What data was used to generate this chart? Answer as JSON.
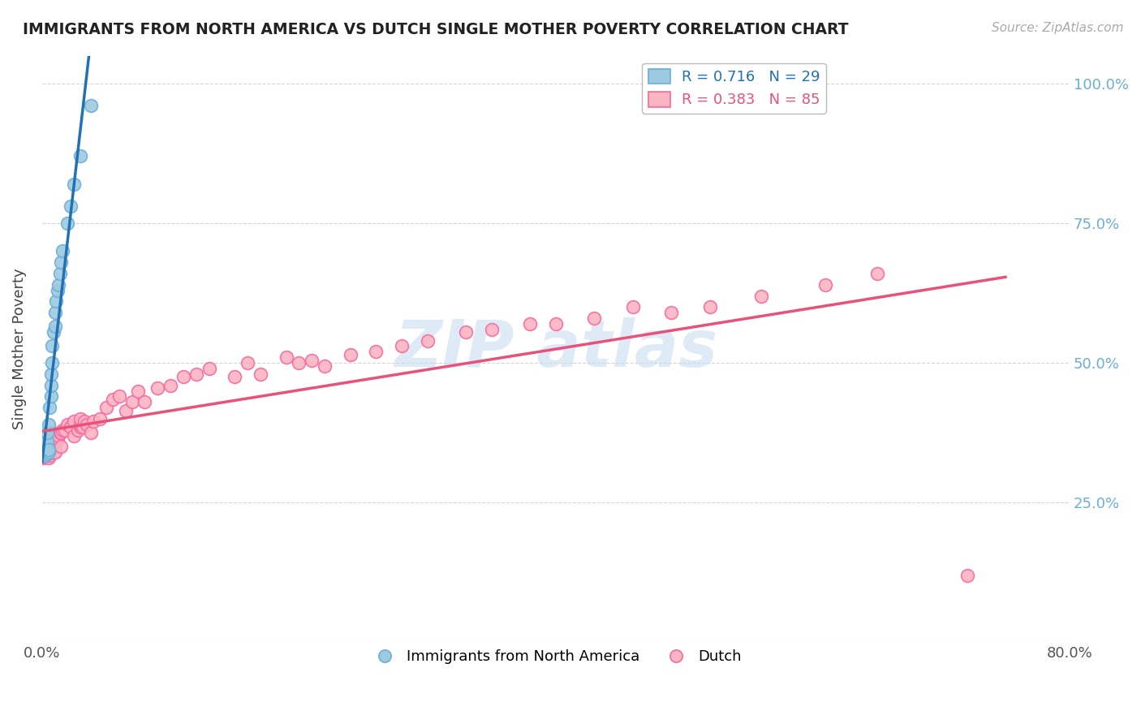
{
  "title": "IMMIGRANTS FROM NORTH AMERICA VS DUTCH SINGLE MOTHER POVERTY CORRELATION CHART",
  "source_text": "Source: ZipAtlas.com",
  "ylabel": "Single Mother Poverty",
  "xmin": 0.0,
  "xmax": 0.8,
  "ymin": 0.0,
  "ymax": 1.05,
  "blue_color": "#9ecae1",
  "pink_color": "#fbb4c1",
  "blue_edge": "#6baed6",
  "pink_edge": "#f768a1",
  "blue_line_color": "#2171b5",
  "pink_line_color": "#e8527a",
  "background_color": "#ffffff",
  "grid_color": "#d0d0d0",
  "blue_R": 0.716,
  "blue_N": 29,
  "pink_R": 0.383,
  "pink_N": 85,
  "watermark_color": "#c8dff0",
  "right_tick_color": "#6baed6",
  "blue_x": [
    0.003,
    0.003,
    0.004,
    0.004,
    0.004,
    0.004,
    0.005,
    0.005,
    0.005,
    0.006,
    0.007,
    0.007,
    0.007,
    0.008,
    0.008,
    0.009,
    0.01,
    0.01,
    0.011,
    0.012,
    0.013,
    0.014,
    0.015,
    0.016,
    0.02,
    0.022,
    0.025,
    0.03,
    0.038
  ],
  "blue_y": [
    0.335,
    0.355,
    0.338,
    0.342,
    0.36,
    0.375,
    0.34,
    0.345,
    0.39,
    0.42,
    0.44,
    0.46,
    0.48,
    0.5,
    0.53,
    0.555,
    0.565,
    0.59,
    0.61,
    0.63,
    0.64,
    0.66,
    0.68,
    0.7,
    0.75,
    0.78,
    0.82,
    0.87,
    0.96
  ],
  "pink_x": [
    0.001,
    0.001,
    0.002,
    0.002,
    0.002,
    0.003,
    0.003,
    0.003,
    0.004,
    0.004,
    0.004,
    0.005,
    0.005,
    0.005,
    0.005,
    0.006,
    0.006,
    0.006,
    0.007,
    0.007,
    0.008,
    0.008,
    0.008,
    0.009,
    0.009,
    0.01,
    0.01,
    0.01,
    0.011,
    0.012,
    0.013,
    0.014,
    0.015,
    0.015,
    0.016,
    0.018,
    0.02,
    0.022,
    0.025,
    0.025,
    0.028,
    0.03,
    0.03,
    0.03,
    0.032,
    0.033,
    0.035,
    0.038,
    0.04,
    0.045,
    0.05,
    0.055,
    0.06,
    0.065,
    0.07,
    0.075,
    0.08,
    0.09,
    0.1,
    0.11,
    0.12,
    0.13,
    0.15,
    0.16,
    0.17,
    0.19,
    0.2,
    0.21,
    0.22,
    0.24,
    0.26,
    0.28,
    0.3,
    0.33,
    0.35,
    0.38,
    0.4,
    0.43,
    0.46,
    0.49,
    0.52,
    0.56,
    0.61,
    0.65,
    0.72
  ],
  "pink_y": [
    0.33,
    0.34,
    0.335,
    0.345,
    0.36,
    0.332,
    0.348,
    0.365,
    0.335,
    0.342,
    0.36,
    0.33,
    0.338,
    0.35,
    0.365,
    0.335,
    0.345,
    0.37,
    0.34,
    0.36,
    0.34,
    0.358,
    0.375,
    0.34,
    0.362,
    0.34,
    0.355,
    0.37,
    0.36,
    0.365,
    0.37,
    0.375,
    0.35,
    0.375,
    0.38,
    0.38,
    0.39,
    0.385,
    0.37,
    0.395,
    0.38,
    0.385,
    0.39,
    0.4,
    0.385,
    0.395,
    0.39,
    0.375,
    0.395,
    0.4,
    0.42,
    0.435,
    0.44,
    0.415,
    0.43,
    0.45,
    0.43,
    0.455,
    0.46,
    0.475,
    0.48,
    0.49,
    0.475,
    0.5,
    0.48,
    0.51,
    0.5,
    0.505,
    0.495,
    0.515,
    0.52,
    0.53,
    0.54,
    0.555,
    0.56,
    0.57,
    0.57,
    0.58,
    0.6,
    0.59,
    0.6,
    0.62,
    0.64,
    0.66,
    0.12
  ]
}
